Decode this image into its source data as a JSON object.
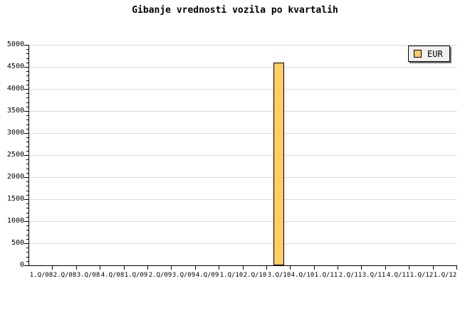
{
  "title": "Gibanje vrednosti vozila po kvartalih",
  "legend": {
    "label": "EUR"
  },
  "colors": {
    "background": "#FFFFFF",
    "bar_fill": "#FFCC66",
    "bar_border": "#000000",
    "grid": "#DDDDDD",
    "axis": "#000000",
    "legend_bg": "#F0F0F0",
    "legend_border": "#000000",
    "legend_shadow": "#777777"
  },
  "chart_data": {
    "type": "bar",
    "title": "Gibanje vrednosti vozila po kvartalih",
    "xlabel": "",
    "ylabel": "",
    "categories": [
      "1.Q/08",
      "2.Q/08",
      "3.Q/08",
      "4.Q/08",
      "1.Q/09",
      "2.Q/09",
      "3.Q/09",
      "4.Q/09",
      "1.Q/10",
      "2.Q/10",
      "3.Q/10",
      "4.Q/10",
      "1.Q/11",
      "2.Q/11",
      "3.Q/11",
      "4.Q/11",
      "1.Q/12",
      "1.Q/12"
    ],
    "series": [
      {
        "name": "EUR",
        "values": [
          null,
          null,
          null,
          null,
          null,
          null,
          null,
          null,
          null,
          null,
          4600,
          null,
          null,
          null,
          null,
          null,
          null,
          null
        ]
      }
    ],
    "ylim": [
      0,
      5000
    ],
    "ytick_step": 500,
    "yminor_step": 100,
    "grid": "horizontal-major-only",
    "legend_position": "top-right"
  }
}
